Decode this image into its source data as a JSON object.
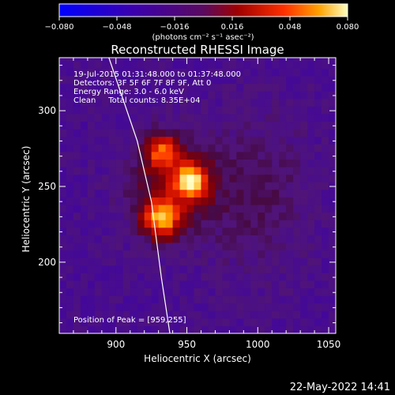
{
  "chart_data": {
    "type": "heatmap",
    "title": "Reconstructed RHESSI Image",
    "xlabel": "Heliocentric X (arcsec)",
    "ylabel": "Heliocentric Y (arcsec)",
    "xlim": [
      860,
      1055
    ],
    "ylim": [
      153,
      335
    ],
    "x_ticks": [
      900,
      950,
      1000,
      1050
    ],
    "y_ticks": [
      200,
      250,
      300
    ],
    "colorbar": {
      "range": [
        -0.08,
        0.08
      ],
      "ticks": [
        "−0.080",
        "−0.048",
        "−0.016",
        "0.016",
        "0.048",
        "0.080"
      ],
      "unit_label": "(photons cm⁻² s⁻¹ asec⁻²)"
    },
    "annotations": [
      "19-Jul-2015 01:31:48.000 to 01:37:48.000",
      "Detectors: 3F 5F 6F 7F 8F 9F, Att 0",
      "Energy Range: 3.0 - 6.0 keV",
      "Clean     Total counts: 8.35E+04"
    ],
    "peak_label": "Position of Peak = [959,255]",
    "peak_position": [
      959,
      255
    ],
    "sources": [
      {
        "x": 953,
        "y": 254,
        "peak": 0.08,
        "sigma": 8
      },
      {
        "x": 932,
        "y": 229,
        "peak": 0.075,
        "sigma": 9
      },
      {
        "x": 932,
        "y": 274,
        "peak": 0.06,
        "sigma": 8
      },
      {
        "x": 940,
        "y": 250,
        "peak": 0.035,
        "sigma": 22
      }
    ],
    "limb_curve": [
      [
        895,
        335
      ],
      [
        915,
        280
      ],
      [
        925,
        240
      ],
      [
        932,
        190
      ],
      [
        938,
        153
      ]
    ],
    "grid": false
  },
  "footer": {
    "date": "22-May-2022 14:41"
  }
}
